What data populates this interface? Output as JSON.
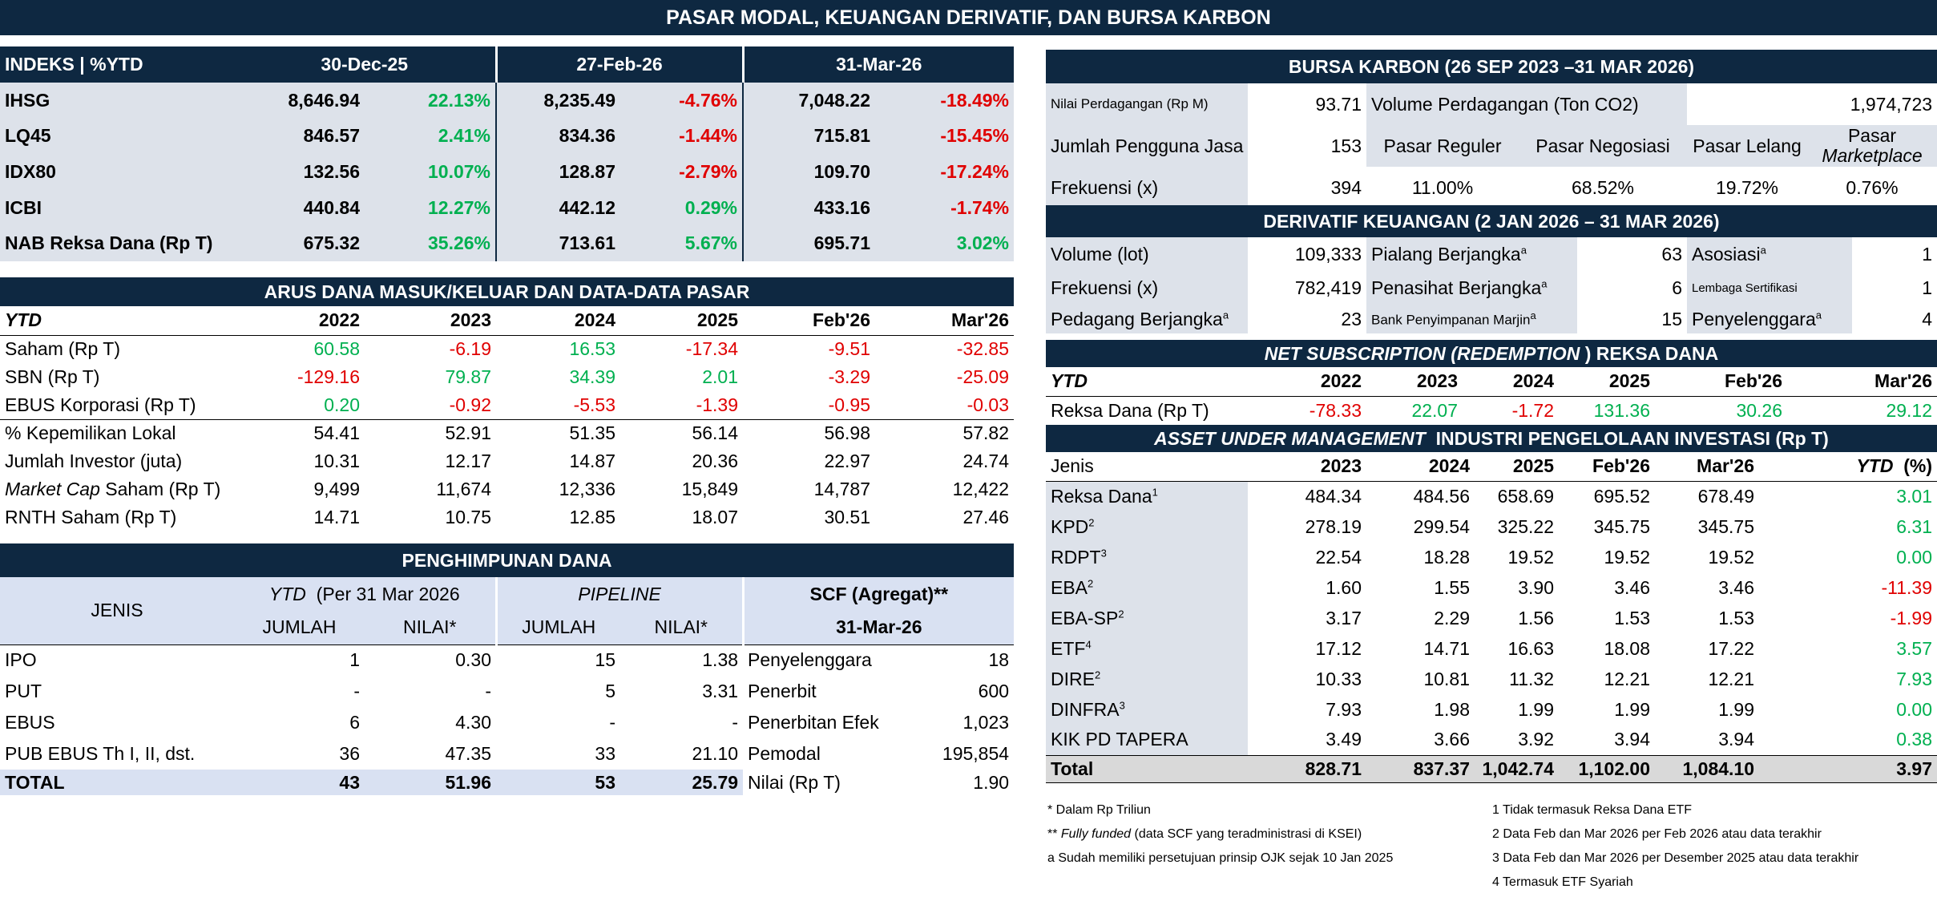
{
  "title": "PASAR MODAL, KEUANGAN DERIVATIF, DAN BURSA KARBON",
  "indeks": {
    "header": [
      "INDEKS | %YTD",
      "30-Dec-25",
      "27-Feb-26",
      "31-Mar-26"
    ],
    "rows": [
      [
        "IHSG",
        "8,646.94",
        "22.13%",
        "8,235.49",
        "-4.76%",
        "7,048.22",
        "-18.49%"
      ],
      [
        "LQ45",
        "846.57",
        "2.41%",
        "834.36",
        "-1.44%",
        "715.81",
        "-15.45%"
      ],
      [
        "IDX80",
        "132.56",
        "10.07%",
        "128.87",
        "-2.79%",
        "109.70",
        "-17.24%"
      ],
      [
        "ICBI",
        "440.84",
        "12.27%",
        "442.12",
        "0.29%",
        "433.16",
        "-1.74%"
      ],
      [
        "NAB Reksa Dana (Rp T)",
        "675.32",
        "35.26%",
        "713.61",
        "5.67%",
        "695.71",
        "3.02%"
      ]
    ]
  },
  "arus": {
    "title": "ARUS DANA MASUK/KELUAR DAN DATA-DATA PASAR",
    "header": [
      "YTD",
      "2022",
      "2023",
      "2024",
      "2025",
      "Feb'26",
      "Mar'26"
    ],
    "rows": [
      [
        "Saham (Rp T)",
        "60.58",
        "-6.19",
        "16.53",
        "-17.34",
        "-9.51",
        "-32.85"
      ],
      [
        "SBN (Rp T)",
        "-129.16",
        "79.87",
        "34.39",
        "2.01",
        "-3.29",
        "-25.09"
      ],
      [
        "EBUS Korporasi (Rp T)",
        "0.20",
        "-0.92",
        "-5.53",
        "-1.39",
        "-0.95",
        "-0.03"
      ],
      [
        "% Kepemilikan Lokal",
        "54.41",
        "52.91",
        "51.35",
        "56.14",
        "56.98",
        "57.82"
      ],
      [
        "Jumlah Investor (juta)",
        "10.31",
        "12.17",
        "14.87",
        "20.36",
        "22.97",
        "24.74"
      ],
      [
        "Market Cap  Saham (Rp T)",
        "9,499",
        "11,674",
        "12,336",
        "15,849",
        "14,787",
        "12,422"
      ],
      [
        "RNTH Saham (Rp T)",
        "14.71",
        "10.75",
        "12.85",
        "18.07",
        "30.51",
        "27.46"
      ]
    ]
  },
  "himpun": {
    "title": "PENGHIMPUNAN DANA",
    "jenis": "JENIS",
    "ytd": "YTD",
    "ytd_rest": "(Per 31 Mar 2026",
    "pipeline": "PIPELINE",
    "scf": "SCF (Agregat)**",
    "jumlah": "JUMLAH",
    "nilai": "NILAI*",
    "scf_date": "31-Mar-26",
    "rows": [
      [
        "IPO",
        "1",
        "0.30",
        "15",
        "1.38",
        "Penyelenggara",
        "18"
      ],
      [
        "PUT",
        "-",
        "-",
        "5",
        "3.31",
        "Penerbit",
        "600"
      ],
      [
        "EBUS",
        "6",
        "4.30",
        "-",
        "-",
        "Penerbitan Efek",
        "1,023"
      ],
      [
        "PUB EBUS Th I, II, dst.",
        "36",
        "47.35",
        "33",
        "21.10",
        "Pemodal",
        "195,854"
      ]
    ],
    "total": [
      "TOTAL",
      "43",
      "51.96",
      "53",
      "25.79",
      "Nilai (Rp T)",
      "1.90"
    ]
  },
  "karbon": {
    "title": "BURSA KARBON (26 SEP 2023 –31 MAR 2026)",
    "nilai_label": "Nilai Perdagangan (Rp M)",
    "nilai": "93.71",
    "volume_label": "Volume Perdagangan (Ton CO2)",
    "volume": "1,974,723",
    "pengguna_label": "Jumlah Pengguna Jasa",
    "pengguna": "153",
    "frek_label": "Frekuensi (x)",
    "frek": "394",
    "pasar": [
      [
        "Pasar Reguler",
        "11.00%"
      ],
      [
        "Pasar Negosiasi",
        "68.52%"
      ],
      [
        "Pasar Lelang",
        "19.72%"
      ]
    ],
    "pasar_mp_1": "Pasar",
    "pasar_mp_2": "Marketplace",
    "pasar_mp_val": "0.76%"
  },
  "derivatif": {
    "title": "DERIVATIF KEUANGAN (2 JAN 2026  – 31 MAR 2026)",
    "rows": [
      [
        "Volume (lot)",
        "109,333",
        "Pialang Berjangka",
        "63",
        "Asosiasi",
        "1"
      ],
      [
        "Frekuensi (x)",
        "782,419",
        "Penasihat Berjangka",
        "6",
        "Lembaga Sertifikasi",
        "1"
      ],
      [
        "Pedagang Berjangka",
        "23",
        "Bank Penyimpanan Marjin",
        "15",
        "Penyelenggara",
        "4"
      ]
    ],
    "sup": "a"
  },
  "netsub": {
    "title_i": "NET SUBSCRIPTION  (REDEMPTION",
    "title_rest": ") REKSA DANA",
    "header": [
      "YTD",
      "2022",
      "2023",
      "2024",
      "2025",
      "Feb'26",
      "Mar'26"
    ],
    "row": [
      "Reksa Dana (Rp T)",
      "-78.33",
      "22.07",
      "-1.72",
      "131.36",
      "30.26",
      "29.12"
    ]
  },
  "aum": {
    "title_i": "ASSET UNDER MANAGEMENT",
    "title_rest": "INDUSTRI PENGELOLAAN INVESTASI (Rp T)",
    "header": [
      "Jenis",
      "2023",
      "2024",
      "2025",
      "Feb'26",
      "Mar'26",
      "YTD",
      "(%)"
    ],
    "rows": [
      [
        "Reksa Dana",
        "1",
        "484.34",
        "484.56",
        "658.69",
        "695.52",
        "678.49",
        "3.01"
      ],
      [
        "KPD",
        "2",
        "278.19",
        "299.54",
        "325.22",
        "345.75",
        "345.75",
        "6.31"
      ],
      [
        "RDPT",
        "3",
        "22.54",
        "18.28",
        "19.52",
        "19.52",
        "19.52",
        "0.00"
      ],
      [
        "EBA",
        "2",
        "1.60",
        "1.55",
        "3.90",
        "3.46",
        "3.46",
        "-11.39"
      ],
      [
        "EBA-SP",
        "2",
        "3.17",
        "2.29",
        "1.56",
        "1.53",
        "1.53",
        "-1.99"
      ],
      [
        "ETF",
        "4",
        "17.12",
        "14.71",
        "16.63",
        "18.08",
        "17.22",
        "3.57"
      ],
      [
        "DIRE",
        "2",
        "10.33",
        "10.81",
        "11.32",
        "12.21",
        "12.21",
        "7.93"
      ],
      [
        "DINFRA",
        "3",
        "7.93",
        "1.98",
        "1.99",
        "1.99",
        "1.99",
        "0.00"
      ],
      [
        "KIK PD TAPERA",
        "",
        "3.49",
        "3.66",
        "3.92",
        "3.94",
        "3.94",
        "0.38"
      ]
    ],
    "total": [
      "Total",
      "828.71",
      "837.37",
      "1,042.74",
      "1,102.00",
      "1,084.10",
      "3.97"
    ]
  },
  "notes": {
    "n1": "* Dalam Rp Triliun",
    "n2_pre": "** ",
    "n2_i": "Fully funded",
    "n2_rest": " (data SCF yang teradministrasi di KSEI)",
    "n3": "a Sudah memiliki persetujuan prinsip OJK sejak 10 Jan 2025",
    "r1": "1 Tidak termasuk Reksa Dana ETF",
    "r2": "2 Data Feb dan Mar 2026 per Feb 2026 atau data terakhir",
    "r3": "3 Data Feb dan Mar 2026 per Desember 2025 atau data terakhir",
    "r4": "4 Termasuk ETF Syariah"
  },
  "colors": {
    "navy": "#0e2841",
    "green": "#00b050",
    "red": "#e00000",
    "gray": "#dde2ea",
    "lightblue": "#d9e1f2"
  }
}
